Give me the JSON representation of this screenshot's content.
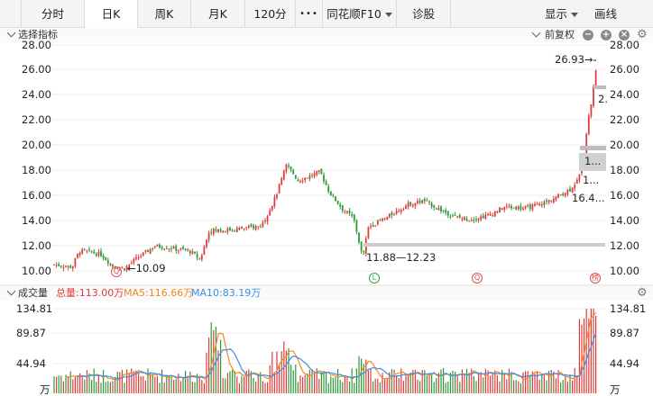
{
  "tabs": [
    "分时",
    "日K",
    "周K",
    "月K",
    "120分",
    "•••",
    "同花顺F10",
    "诊股"
  ],
  "active_tab": "日K",
  "toolbar_right": {
    "display": "显示",
    "draw": "画线"
  },
  "indicator_header": {
    "select_indicator": "选择指标",
    "adjust": "前复权",
    "minus": "−",
    "plus": "+",
    "close": "×"
  },
  "price_axis": {
    "left": [
      "28.00",
      "26.00",
      "24.00",
      "22.00",
      "20.00",
      "18.00",
      "16.00",
      "14.00",
      "12.00",
      "10.00"
    ],
    "right": [
      "28.00",
      "26.00",
      "24.00",
      "22.00",
      "20.00",
      "18.00",
      "16.00",
      "14.00",
      "12.00",
      "10.00"
    ]
  },
  "annotations": {
    "high_label": "26.93→",
    "low_label": "←10.09",
    "range_label": "11.88—12.23",
    "right_label_1": "2.",
    "right_label_2": "1...",
    "right_label_3": "1...",
    "right_label_4": "16.4..."
  },
  "markers": [
    {
      "text": "Q",
      "color": "#e05050"
    },
    {
      "text": "L",
      "color": "#2fa84f"
    },
    {
      "text": "Q",
      "color": "#e05050"
    },
    {
      "text": "榜",
      "color": "#e05050"
    }
  ],
  "volume_header": {
    "title": "成交量",
    "total": "总量:113.00万",
    "ma5": "MA5:116.66万",
    "ma10": "MA10:83.19万"
  },
  "volume_axis": {
    "left": [
      "134.81",
      "89.87",
      "44.94",
      "万"
    ],
    "right": [
      "134.81",
      "89.87",
      "44.94",
      "万"
    ]
  },
  "colors": {
    "up": "#e23b3b",
    "down": "#2a9a3a",
    "ma5": "#f08a1e",
    "ma10": "#3a8ee6"
  },
  "chart_data": {
    "type": "candlestick",
    "y_range": [
      9.5,
      28.0
    ],
    "volume_unit": "万",
    "volume_range": [
      0,
      134.81
    ],
    "total_volume_wan": 113.0,
    "ma5_wan": 116.66,
    "ma10_wan": 83.19
  }
}
